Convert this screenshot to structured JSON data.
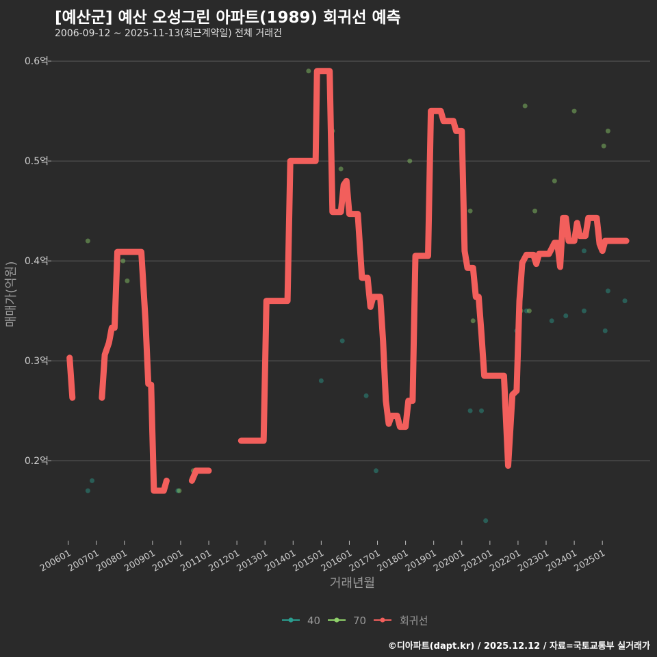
{
  "title": "[예산군] 예산 오성그린 아파트(1989) 회귀선 예측",
  "subtitle": "2006-09-12 ~ 2025-11-13(최근계약일) 전체 거래건",
  "caption": "©디아파트(dapt.kr) / 2025.12.12 / 자료=국토교통부 실거래가",
  "colors": {
    "background": "#2a2a2a",
    "grid": "#5e5e5e",
    "s40": "#2a9d8f",
    "s70": "#8fd16a",
    "regression": "#f25f5c"
  },
  "chart_data": {
    "type": "line",
    "xlabel": "거래년월",
    "ylabel": "매매가(억원)",
    "ylim": [
      0.12,
      0.62
    ],
    "y_ticks": [
      {
        "value": 0.2,
        "label": "0.2억"
      },
      {
        "value": 0.3,
        "label": "0.3억"
      },
      {
        "value": 0.4,
        "label": "0.4억"
      },
      {
        "value": 0.5,
        "label": "0.5억"
      },
      {
        "value": 0.6,
        "label": "0.6억"
      }
    ],
    "xlim": [
      2005.4,
      2026.7
    ],
    "x_ticks": [
      {
        "value": 2006.0,
        "label": "200601"
      },
      {
        "value": 2007.0,
        "label": "200701"
      },
      {
        "value": 2008.0,
        "label": "200801"
      },
      {
        "value": 2009.0,
        "label": "200901"
      },
      {
        "value": 2010.0,
        "label": "201001"
      },
      {
        "value": 2011.0,
        "label": "201101"
      },
      {
        "value": 2012.0,
        "label": "201201"
      },
      {
        "value": 2013.0,
        "label": "201301"
      },
      {
        "value": 2014.0,
        "label": "201401"
      },
      {
        "value": 2015.0,
        "label": "201501"
      },
      {
        "value": 2016.0,
        "label": "201601"
      },
      {
        "value": 2017.0,
        "label": "201701"
      },
      {
        "value": 2018.0,
        "label": "201801"
      },
      {
        "value": 2019.0,
        "label": "201901"
      },
      {
        "value": 2020.0,
        "label": "202001"
      },
      {
        "value": 2021.0,
        "label": "202101"
      },
      {
        "value": 2022.0,
        "label": "202201"
      },
      {
        "value": 2023.0,
        "label": "202301"
      },
      {
        "value": 2024.0,
        "label": "202401"
      },
      {
        "value": 2025.0,
        "label": "202501"
      }
    ],
    "legend": [
      "40",
      "70",
      "회귀선"
    ],
    "series": [
      {
        "name": "40",
        "type": "scatter",
        "points": [
          [
            2006.7,
            0.17
          ],
          [
            2006.85,
            0.18
          ],
          [
            2009.9,
            0.17
          ],
          [
            2015.0,
            0.28
          ],
          [
            2015.75,
            0.32
          ],
          [
            2016.6,
            0.265
          ],
          [
            2016.95,
            0.19
          ],
          [
            2020.3,
            0.25
          ],
          [
            2020.7,
            0.25
          ],
          [
            2020.85,
            0.14
          ],
          [
            2021.95,
            0.33
          ],
          [
            2022.3,
            0.35
          ],
          [
            2023.2,
            0.34
          ],
          [
            2023.7,
            0.345
          ],
          [
            2024.35,
            0.41
          ],
          [
            2024.35,
            0.35
          ],
          [
            2025.1,
            0.33
          ],
          [
            2025.2,
            0.37
          ],
          [
            2025.8,
            0.36
          ]
        ]
      },
      {
        "name": "70",
        "type": "scatter",
        "points": [
          [
            2006.7,
            0.42
          ],
          [
            2007.95,
            0.4
          ],
          [
            2008.1,
            0.38
          ],
          [
            2009.95,
            0.17
          ],
          [
            2010.45,
            0.19
          ],
          [
            2014.55,
            0.59
          ],
          [
            2015.4,
            0.53
          ],
          [
            2015.7,
            0.492
          ],
          [
            2018.15,
            0.5
          ],
          [
            2020.3,
            0.45
          ],
          [
            2020.4,
            0.34
          ],
          [
            2022.1,
            0.35
          ],
          [
            2022.25,
            0.555
          ],
          [
            2022.4,
            0.35
          ],
          [
            2022.6,
            0.45
          ],
          [
            2023.3,
            0.48
          ],
          [
            2024.0,
            0.55
          ],
          [
            2025.05,
            0.515
          ],
          [
            2025.2,
            0.53
          ]
        ]
      },
      {
        "name": "회귀선",
        "type": "line",
        "points": [
          [
            2006.05,
            0.303
          ],
          [
            2006.15,
            0.263
          ],
          [
            2007.2,
            0.263
          ],
          [
            2007.3,
            0.306
          ],
          [
            2007.45,
            0.318
          ],
          [
            2007.55,
            0.333
          ],
          [
            2007.65,
            0.333
          ],
          [
            2007.75,
            0.409
          ],
          [
            2008.6,
            0.409
          ],
          [
            2008.75,
            0.34
          ],
          [
            2008.85,
            0.277
          ],
          [
            2008.95,
            0.276
          ],
          [
            2009.05,
            0.17
          ],
          [
            2009.4,
            0.17
          ],
          [
            2009.5,
            0.18
          ],
          [
            2010.4,
            0.18
          ],
          [
            2010.55,
            0.19
          ],
          [
            2011.0,
            0.19
          ],
          [
            2012.15,
            0.22
          ],
          [
            2012.95,
            0.22
          ],
          [
            2013.05,
            0.36
          ],
          [
            2013.8,
            0.36
          ],
          [
            2013.9,
            0.5
          ],
          [
            2014.8,
            0.5
          ],
          [
            2014.85,
            0.59
          ],
          [
            2015.3,
            0.59
          ],
          [
            2015.4,
            0.449
          ],
          [
            2015.7,
            0.449
          ],
          [
            2015.8,
            0.476
          ],
          [
            2015.9,
            0.48
          ],
          [
            2016.0,
            0.447
          ],
          [
            2016.3,
            0.447
          ],
          [
            2016.45,
            0.383
          ],
          [
            2016.65,
            0.383
          ],
          [
            2016.75,
            0.354
          ],
          [
            2016.85,
            0.364
          ],
          [
            2017.1,
            0.364
          ],
          [
            2017.2,
            0.32
          ],
          [
            2017.3,
            0.26
          ],
          [
            2017.4,
            0.237
          ],
          [
            2017.5,
            0.245
          ],
          [
            2017.7,
            0.245
          ],
          [
            2017.8,
            0.234
          ],
          [
            2018.0,
            0.234
          ],
          [
            2018.1,
            0.26
          ],
          [
            2018.25,
            0.26
          ],
          [
            2018.35,
            0.405
          ],
          [
            2018.8,
            0.405
          ],
          [
            2018.9,
            0.55
          ],
          [
            2019.25,
            0.55
          ],
          [
            2019.35,
            0.54
          ],
          [
            2019.7,
            0.54
          ],
          [
            2019.8,
            0.53
          ],
          [
            2020.0,
            0.53
          ],
          [
            2020.1,
            0.41
          ],
          [
            2020.2,
            0.393
          ],
          [
            2020.4,
            0.393
          ],
          [
            2020.5,
            0.364
          ],
          [
            2020.6,
            0.364
          ],
          [
            2020.7,
            0.327
          ],
          [
            2020.8,
            0.285
          ],
          [
            2021.3,
            0.285
          ],
          [
            2021.5,
            0.285
          ],
          [
            2021.65,
            0.195
          ],
          [
            2021.8,
            0.266
          ],
          [
            2021.95,
            0.27
          ],
          [
            2022.05,
            0.36
          ],
          [
            2022.15,
            0.398
          ],
          [
            2022.3,
            0.406
          ],
          [
            2022.55,
            0.406
          ],
          [
            2022.65,
            0.397
          ],
          [
            2022.75,
            0.407
          ],
          [
            2022.85,
            0.407
          ],
          [
            2022.95,
            0.407
          ],
          [
            2023.1,
            0.407
          ],
          [
            2023.3,
            0.418
          ],
          [
            2023.4,
            0.418
          ],
          [
            2023.5,
            0.394
          ],
          [
            2023.6,
            0.443
          ],
          [
            2023.7,
            0.443
          ],
          [
            2023.8,
            0.42
          ],
          [
            2024.0,
            0.42
          ],
          [
            2024.1,
            0.438
          ],
          [
            2024.2,
            0.425
          ],
          [
            2024.4,
            0.425
          ],
          [
            2024.5,
            0.443
          ],
          [
            2024.8,
            0.443
          ],
          [
            2024.9,
            0.417
          ],
          [
            2025.0,
            0.41
          ],
          [
            2025.1,
            0.42
          ],
          [
            2025.5,
            0.42
          ],
          [
            2025.7,
            0.42
          ],
          [
            2025.85,
            0.42
          ]
        ]
      }
    ]
  }
}
